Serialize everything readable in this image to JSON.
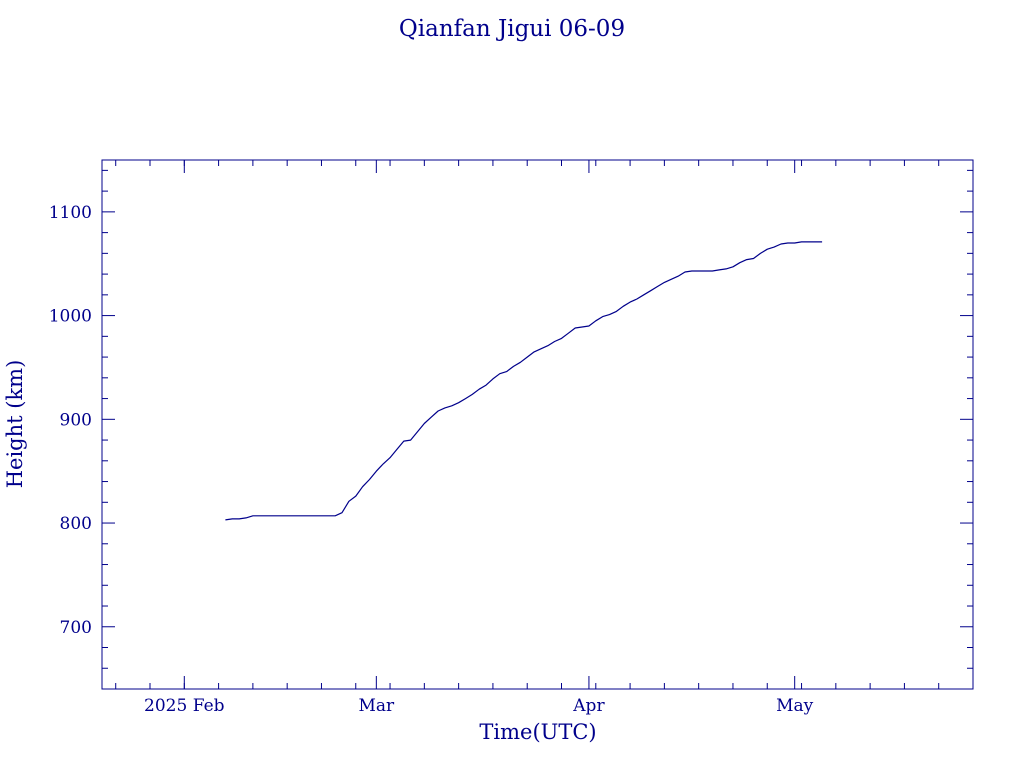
{
  "chart_data": {
    "type": "line",
    "title": "Qianfan Jigui 06-09",
    "xlabel": "Time(UTC)",
    "ylabel": "Height (km)",
    "x_ticks": [
      {
        "date": "2025-02-01",
        "label": "2025 Feb"
      },
      {
        "date": "2025-03-01",
        "label": "Mar"
      },
      {
        "date": "2025-04-01",
        "label": "Apr"
      },
      {
        "date": "2025-05-01",
        "label": "May"
      }
    ],
    "y_ticks": [
      700,
      800,
      900,
      1000,
      1100
    ],
    "xlim": [
      "2025-01-20",
      "2025-05-27"
    ],
    "ylim": [
      640,
      1150
    ],
    "grid": false,
    "series": [
      {
        "x": [
          "2025-02-07",
          "2025-02-08",
          "2025-02-09",
          "2025-02-10",
          "2025-02-11",
          "2025-02-12",
          "2025-02-14",
          "2025-02-16",
          "2025-02-18",
          "2025-02-20",
          "2025-02-21",
          "2025-02-22",
          "2025-02-23",
          "2025-02-24",
          "2025-02-25",
          "2025-02-26",
          "2025-02-27",
          "2025-02-28",
          "2025-03-01",
          "2025-03-02",
          "2025-03-03",
          "2025-03-04",
          "2025-03-05",
          "2025-03-06",
          "2025-03-07",
          "2025-03-08",
          "2025-03-09",
          "2025-03-10",
          "2025-03-11",
          "2025-03-12",
          "2025-03-13",
          "2025-03-14",
          "2025-03-15",
          "2025-03-16",
          "2025-03-17",
          "2025-03-18",
          "2025-03-19",
          "2025-03-20",
          "2025-03-21",
          "2025-03-22",
          "2025-03-23",
          "2025-03-24",
          "2025-03-25",
          "2025-03-26",
          "2025-03-27",
          "2025-03-28",
          "2025-03-29",
          "2025-03-30",
          "2025-03-31",
          "2025-04-01",
          "2025-04-02",
          "2025-04-03",
          "2025-04-04",
          "2025-04-05",
          "2025-04-06",
          "2025-04-07",
          "2025-04-08",
          "2025-04-09",
          "2025-04-10",
          "2025-04-11",
          "2025-04-12",
          "2025-04-13",
          "2025-04-14",
          "2025-04-15",
          "2025-04-16",
          "2025-04-17",
          "2025-04-18",
          "2025-04-19",
          "2025-04-20",
          "2025-04-21",
          "2025-04-22",
          "2025-04-23",
          "2025-04-24",
          "2025-04-25",
          "2025-04-26",
          "2025-04-27",
          "2025-04-28",
          "2025-04-29",
          "2025-04-30",
          "2025-05-01",
          "2025-05-02",
          "2025-05-03",
          "2025-05-04",
          "2025-05-05"
        ],
        "y": [
          803,
          804,
          804,
          805,
          807,
          807,
          807,
          807,
          807,
          807,
          807,
          807,
          807,
          810,
          821,
          826,
          835,
          842,
          850,
          857,
          863,
          871,
          879,
          880,
          888,
          896,
          902,
          908,
          911,
          913,
          916,
          920,
          924,
          929,
          933,
          939,
          944,
          946,
          951,
          955,
          960,
          965,
          968,
          971,
          975,
          978,
          983,
          988,
          989,
          990,
          995,
          999,
          1001,
          1004,
          1009,
          1013,
          1016,
          1020,
          1024,
          1028,
          1032,
          1035,
          1038,
          1042,
          1043,
          1043,
          1043,
          1043,
          1044,
          1045,
          1047,
          1051,
          1054,
          1055,
          1060,
          1064,
          1066,
          1069,
          1070,
          1070,
          1071,
          1071,
          1071,
          1071
        ]
      }
    ]
  },
  "colors": {
    "ink": "#00008b",
    "background": "#ffffff"
  }
}
